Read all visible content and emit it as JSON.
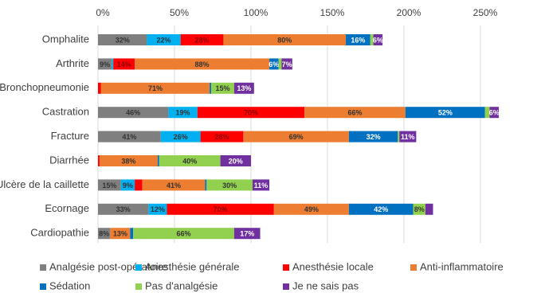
{
  "chart_data": {
    "type": "stacked-bar-horizontal",
    "categories": [
      "Omphalite",
      "Arthrite",
      "Bronchopneumonie",
      "Castration",
      "Fracture",
      "Diarrhée",
      "Ulcère de la caillette",
      "Ecornage",
      "Cardiopathie"
    ],
    "series": [
      {
        "name": "Analgésie post-opératoire",
        "color": "#7f7f7f",
        "values": [
          32,
          9,
          0,
          46,
          41,
          0,
          15,
          33,
          8
        ],
        "value_labels": [
          "32%",
          "9%",
          null,
          "46%",
          "41%",
          null,
          "15%",
          "33%",
          "8%"
        ]
      },
      {
        "name": "Anesthésie générale",
        "color": "#00b0f0",
        "values": [
          22,
          1,
          0,
          19,
          26,
          0,
          9,
          12,
          0
        ],
        "value_labels": [
          "22%",
          null,
          null,
          "19%",
          "26%",
          null,
          "9%",
          "12%",
          null
        ]
      },
      {
        "name": "Anesthésie locale",
        "color": "#ff0000",
        "values": [
          28,
          14,
          2,
          70,
          28,
          1,
          5,
          70,
          0
        ],
        "value_labels": [
          "28%",
          "14%",
          null,
          "70%",
          "28%",
          null,
          null,
          "70%",
          null
        ]
      },
      {
        "name": "Anti-inflammatoire",
        "color": "#ed7d31",
        "values": [
          80,
          88,
          71,
          66,
          69,
          38,
          41,
          49,
          13
        ],
        "value_labels": [
          "80%",
          "88%",
          "71%",
          "66%",
          "69%",
          "38%",
          "41%",
          "49%",
          "13%"
        ]
      },
      {
        "name": "Sédation",
        "color": "#0070c0",
        "values": [
          16,
          6,
          1,
          52,
          32,
          1,
          1,
          42,
          2
        ],
        "value_labels": [
          "16%",
          "6%",
          null,
          "52%",
          "32%",
          null,
          null,
          "42%",
          null
        ]
      },
      {
        "name": "Pas d'analgésie",
        "color": "#92d050",
        "values": [
          2,
          2,
          15,
          3,
          1,
          40,
          30,
          8,
          66
        ],
        "value_labels": [
          null,
          null,
          "15%",
          null,
          null,
          "40%",
          "30%",
          "8%",
          "66%"
        ]
      },
      {
        "name": "Je ne sais pas",
        "color": "#7030a0",
        "values": [
          6,
          7,
          13,
          6,
          11,
          20,
          11,
          5,
          17
        ],
        "value_labels": [
          "6%",
          "7%",
          "13%",
          "6%",
          "11%",
          "20%",
          "11%",
          null,
          "17%"
        ]
      }
    ],
    "xlim": [
      0,
      280
    ],
    "xticks": [
      {
        "value": 0,
        "label": "0%"
      },
      {
        "value": 50,
        "label": "50%"
      },
      {
        "value": 100,
        "label": "100%"
      },
      {
        "value": 150,
        "label": "150%"
      },
      {
        "value": 200,
        "label": "200%"
      },
      {
        "value": 250,
        "label": "250%"
      }
    ],
    "grid": true,
    "legend": "bottom"
  }
}
